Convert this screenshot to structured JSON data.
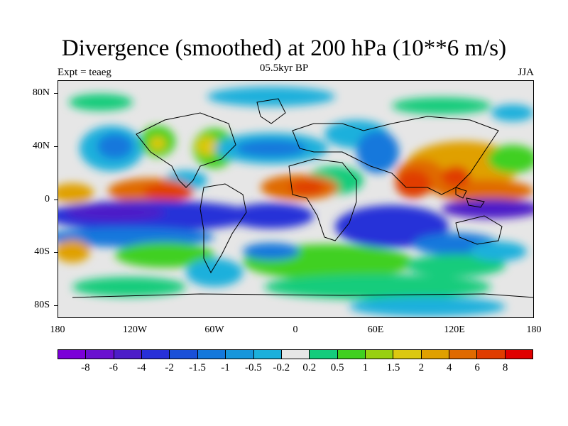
{
  "title": "Divergence (smoothed) at 200 hPa (10**6 m/s)",
  "subtitle": "05.5kyr BP",
  "left_label": "Expt = teaeg",
  "right_label": "JJA",
  "lat_labels": [
    "80N",
    "40N",
    "0",
    "40S",
    "80S"
  ],
  "lon_labels": [
    "180",
    "120W",
    "60W",
    "0",
    "60E",
    "120E",
    "180"
  ],
  "colorbar": {
    "labels": [
      "-8",
      "-6",
      "-4",
      "-2",
      "-1.5",
      "-1",
      "-0.5",
      "-0.2",
      "0.2",
      "0.5",
      "1",
      "1.5",
      "2",
      "4",
      "6",
      "8"
    ],
    "colors": [
      "#7b00d8",
      "#6a10d0",
      "#4d1dc8",
      "#2830d8",
      "#1a50d8",
      "#1478dc",
      "#1796dc",
      "#1cb0dc",
      "#e6e6e6",
      "#14cc7c",
      "#40d020",
      "#98d010",
      "#dcc810",
      "#e0a000",
      "#e06a00",
      "#e03c00",
      "#e00000"
    ]
  }
}
